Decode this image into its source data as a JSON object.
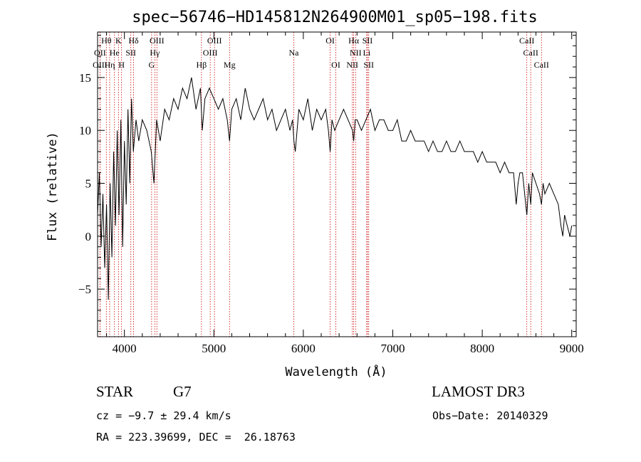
{
  "chart_data": {
    "type": "line",
    "title": "spec−56746−HD145812N264900M01_sp05−198.fits",
    "xlabel": "Wavelength (Å)",
    "ylabel": "Flux (relative)",
    "xlim": [
      3700,
      9050
    ],
    "ylim": [
      -9.5,
      19.3
    ],
    "x_ticks": [
      4000,
      5000,
      6000,
      7000,
      8000,
      9000
    ],
    "x_tick_labels": [
      "4000",
      "5000",
      "6000",
      "7000",
      "8000",
      "9000"
    ],
    "y_ticks": [
      -5,
      0,
      5,
      10,
      15
    ],
    "y_tick_labels": [
      "−5",
      "0",
      "5",
      "10",
      "15"
    ],
    "grid": false,
    "series": [
      {
        "name": "spectrum",
        "x": [
          3700,
          3720,
          3740,
          3760,
          3780,
          3800,
          3820,
          3840,
          3860,
          3880,
          3900,
          3920,
          3940,
          3960,
          3980,
          4000,
          4020,
          4040,
          4060,
          4080,
          4100,
          4130,
          4160,
          4200,
          4250,
          4300,
          4330,
          4360,
          4400,
          4450,
          4500,
          4550,
          4600,
          4650,
          4700,
          4750,
          4800,
          4850,
          4870,
          4900,
          4950,
          5000,
          5050,
          5100,
          5150,
          5175,
          5200,
          5250,
          5300,
          5350,
          5400,
          5450,
          5500,
          5550,
          5600,
          5650,
          5700,
          5750,
          5800,
          5850,
          5880,
          5895,
          5910,
          5950,
          6000,
          6050,
          6100,
          6150,
          6200,
          6250,
          6280,
          6300,
          6320,
          6350,
          6400,
          6450,
          6500,
          6550,
          6563,
          6580,
          6600,
          6650,
          6700,
          6750,
          6800,
          6850,
          6900,
          6950,
          7000,
          7050,
          7100,
          7150,
          7200,
          7250,
          7300,
          7350,
          7400,
          7450,
          7500,
          7550,
          7600,
          7650,
          7700,
          7750,
          7800,
          7850,
          7900,
          7950,
          8000,
          8050,
          8100,
          8150,
          8200,
          8250,
          8300,
          8350,
          8380,
          8400,
          8420,
          8450,
          8498,
          8520,
          8542,
          8560,
          8600,
          8640,
          8662,
          8680,
          8700,
          8750,
          8800,
          8850,
          8880,
          8900,
          8920,
          8950,
          8980,
          9000
        ],
        "values": [
          2,
          6,
          -1,
          4,
          -3,
          3,
          -6,
          5,
          -2,
          8,
          1,
          10,
          2,
          11,
          -1,
          9,
          3,
          12,
          5,
          13,
          8,
          11,
          9,
          11,
          10,
          8,
          5,
          11,
          9,
          12,
          11,
          13,
          12,
          14,
          13,
          15,
          12,
          14,
          10,
          13,
          14,
          13,
          12,
          13,
          11,
          9,
          12,
          13,
          11,
          14,
          12,
          11,
          12,
          13,
          11,
          12,
          10,
          11,
          12,
          10,
          11,
          9,
          8,
          12,
          11,
          13,
          10,
          12,
          11,
          12,
          10,
          8,
          11,
          10,
          11,
          12,
          11,
          10,
          9,
          11,
          11,
          10,
          11,
          12,
          10,
          11,
          11,
          10,
          10,
          11,
          9,
          9,
          10,
          9,
          9,
          9,
          8,
          9,
          8,
          8,
          9,
          8,
          8,
          9,
          8,
          8,
          8,
          7,
          8,
          7,
          7,
          7,
          6,
          7,
          6,
          6,
          3,
          5,
          6,
          6,
          2,
          5,
          3,
          6,
          5,
          4,
          3,
          5,
          4,
          5,
          4,
          3,
          1,
          0,
          2,
          1,
          0,
          1
        ]
      }
    ],
    "annotations": [
      {
        "label": "Hθ",
        "x": 3798,
        "row": 0
      },
      {
        "label": "K",
        "x": 3934,
        "row": 0
      },
      {
        "label": "Hδ",
        "x": 4102,
        "row": 0
      },
      {
        "label": "OIII",
        "x": 4363,
        "row": 0
      },
      {
        "label": "OIII",
        "x": 5007,
        "row": 0
      },
      {
        "label": "OI",
        "x": 6300,
        "row": 0
      },
      {
        "label": "Hα",
        "x": 6563,
        "row": 0
      },
      {
        "label": "SII",
        "x": 6717,
        "row": 0
      },
      {
        "label": "CaII",
        "x": 8498,
        "row": 0
      },
      {
        "label": "OII",
        "x": 3727,
        "row": 1
      },
      {
        "label": "He",
        "x": 3889,
        "row": 1
      },
      {
        "label": "SII",
        "x": 4072,
        "row": 1
      },
      {
        "label": "Hγ",
        "x": 4340,
        "row": 1
      },
      {
        "label": "OIII",
        "x": 4959,
        "row": 1
      },
      {
        "label": "Na",
        "x": 5893,
        "row": 1
      },
      {
        "label": "NII",
        "x": 6584,
        "row": 1
      },
      {
        "label": "Li",
        "x": 6708,
        "row": 1
      },
      {
        "label": "CaII",
        "x": 8542,
        "row": 1
      },
      {
        "label": "OIII",
        "x": 3727,
        "row": 2
      },
      {
        "label": "Hη",
        "x": 3835,
        "row": 2
      },
      {
        "label": "H",
        "x": 3968,
        "row": 2
      },
      {
        "label": "G",
        "x": 4304,
        "row": 2
      },
      {
        "label": "Hβ",
        "x": 4861,
        "row": 2
      },
      {
        "label": "Mg",
        "x": 5175,
        "row": 2
      },
      {
        "label": "OI",
        "x": 6363,
        "row": 2
      },
      {
        "label": "NII",
        "x": 6548,
        "row": 2
      },
      {
        "label": "SII",
        "x": 6731,
        "row": 2
      },
      {
        "label": "CaII",
        "x": 8662,
        "row": 2
      }
    ],
    "line_color": "#000000",
    "marker_line_color": "#cc0000"
  },
  "info": {
    "object_class": "STAR",
    "subclass": "G7",
    "survey": "LAMOST DR3",
    "redshift_text": "cz = −9.7 ± 29.4 km/s",
    "obs_date_text": "Obs−Date: 20140329",
    "coords_text": "RA = 223.39699, DEC =  26.18763"
  }
}
